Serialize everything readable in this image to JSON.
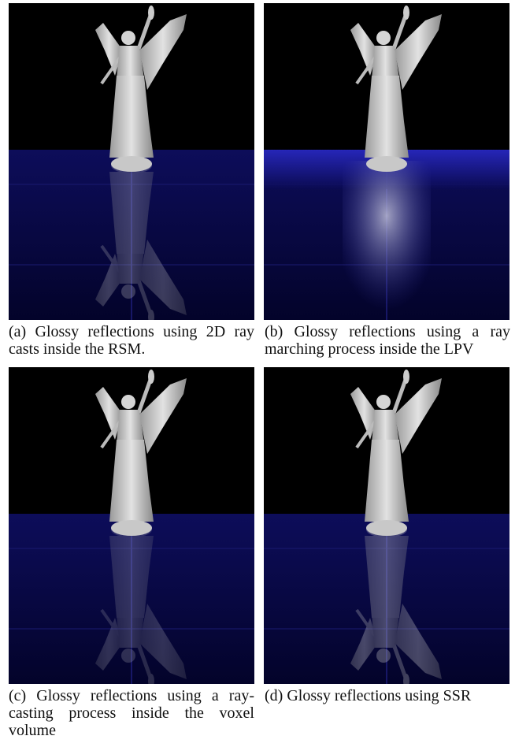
{
  "figure": {
    "panels": [
      {
        "caption": "(a) Glossy reflections using 2D ray casts inside the RSM."
      },
      {
        "caption": "(b) Glossy reflections using a ray marching process inside the LPV"
      },
      {
        "caption": "(c) Glossy reflections using a ray-casting process inside the voxel volume"
      },
      {
        "caption": "(d) Glossy reflections using SSR"
      }
    ]
  }
}
